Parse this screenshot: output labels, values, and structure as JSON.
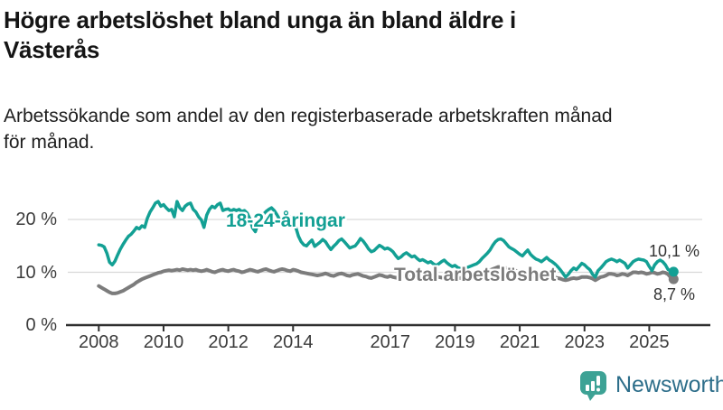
{
  "header": {
    "title_line1": "Högre arbetslöshet bland unga än bland äldre i",
    "title_line2": "Västerås",
    "subtitle_line1": "Arbetssökande som andel av den registerbaserade arbetskraften månad",
    "subtitle_line2": "för månad."
  },
  "chart_data": {
    "type": "line",
    "x_unit": "month",
    "x_start": "2008-01",
    "x_end": "2025-10",
    "x_ticks": [
      2008,
      2010,
      2012,
      2014,
      2017,
      2019,
      2021,
      2023,
      2025
    ],
    "x_tick_labels": [
      "2008",
      "2010",
      "2012",
      "2014",
      "2017",
      "2019",
      "2021",
      "2023",
      "2025"
    ],
    "y_ticks": [
      0,
      10,
      20
    ],
    "y_tick_labels": [
      "0 %",
      "10 %",
      "20 %"
    ],
    "ylim": [
      0,
      25
    ],
    "grid": "horizontal",
    "gridline_color": "#d9d9d9",
    "axis_color": "#2f2f2f",
    "series": [
      {
        "name": "Total arbetslöshet",
        "color": "#7c7c7c",
        "end_value_label": "8,7 %",
        "values": [
          7.4,
          7.1,
          6.8,
          6.5,
          6.2,
          6.0,
          6.0,
          6.1,
          6.3,
          6.5,
          6.8,
          7.1,
          7.4,
          7.7,
          8.1,
          8.4,
          8.7,
          8.9,
          9.1,
          9.3,
          9.5,
          9.7,
          9.9,
          10.0,
          10.2,
          10.3,
          10.4,
          10.3,
          10.4,
          10.5,
          10.4,
          10.6,
          10.5,
          10.4,
          10.5,
          10.4,
          10.5,
          10.3,
          10.2,
          10.3,
          10.5,
          10.3,
          10.1,
          10.0,
          10.2,
          10.4,
          10.5,
          10.3,
          10.2,
          10.4,
          10.5,
          10.3,
          10.2,
          10.0,
          10.1,
          10.3,
          10.5,
          10.4,
          10.2,
          10.1,
          10.3,
          10.5,
          10.6,
          10.4,
          10.2,
          10.1,
          10.3,
          10.5,
          10.6,
          10.5,
          10.3,
          10.2,
          10.5,
          10.4,
          10.2,
          10.0,
          9.9,
          9.8,
          9.7,
          9.6,
          9.5,
          9.4,
          9.5,
          9.6,
          9.8,
          9.6,
          9.4,
          9.3,
          9.5,
          9.7,
          9.8,
          9.6,
          9.4,
          9.3,
          9.5,
          9.6,
          9.7,
          9.5,
          9.3,
          9.2,
          9.0,
          8.9,
          9.1,
          9.3,
          9.5,
          9.4,
          9.2,
          9.1,
          9.3,
          9.1,
          9.0,
          8.9,
          9.1,
          9.3,
          9.4,
          9.2,
          9.1,
          9.0,
          8.9,
          9.0,
          9.1,
          9.0,
          8.9,
          8.8,
          8.9,
          9.0,
          9.1,
          9.0,
          8.9,
          8.8,
          8.9,
          9.0,
          9.1,
          9.0,
          8.9,
          9.0,
          9.1,
          9.2,
          9.3,
          9.4,
          9.5,
          9.6,
          9.8,
          10.0,
          10.2,
          10.4,
          10.6,
          10.8,
          11.0,
          11.0,
          10.9,
          10.8,
          10.7,
          10.5,
          10.4,
          10.2,
          10.0,
          9.8,
          9.7,
          9.5,
          9.4,
          9.2,
          9.1,
          9.0,
          8.9,
          9.0,
          9.1,
          9.2,
          9.1,
          9.0,
          8.9,
          8.8,
          8.6,
          8.5,
          8.6,
          8.8,
          8.9,
          8.8,
          8.9,
          9.1,
          9.1,
          9.1,
          9.0,
          8.8,
          8.5,
          8.8,
          9.1,
          9.2,
          9.4,
          9.7,
          9.7,
          9.6,
          9.4,
          9.5,
          9.7,
          9.6,
          9.4,
          9.7,
          10.0,
          10.0,
          9.9,
          10.0,
          9.9,
          9.7,
          9.8,
          10.0,
          9.9,
          9.7,
          9.8,
          10.0,
          9.9,
          9.6,
          9.0,
          8.7
        ]
      },
      {
        "name": "18-24-åringar",
        "color": "#13a094",
        "end_value_label": "10,1 %",
        "values": [
          15.2,
          15.1,
          14.8,
          13.6,
          11.9,
          11.4,
          12.1,
          13.3,
          14.4,
          15.3,
          16.1,
          16.8,
          17.2,
          17.8,
          18.5,
          18.2,
          18.8,
          18.5,
          20.2,
          21.4,
          22.2,
          23.1,
          23.4,
          22.5,
          22.8,
          22.2,
          21.7,
          21.9,
          20.5,
          23.4,
          22.2,
          21.7,
          22.5,
          22.9,
          23.1,
          21.9,
          21.4,
          20.5,
          19.9,
          18.5,
          20.8,
          21.9,
          22.5,
          22.2,
          22.8,
          23.1,
          21.7,
          21.9,
          22.0,
          21.6,
          21.9,
          21.7,
          21.9,
          21.5,
          21.7,
          21.2,
          20.1,
          18.4,
          17.7,
          19.2,
          20.3,
          21.0,
          21.5,
          21.9,
          22.2,
          21.7,
          20.9,
          20.0,
          19.5,
          19.3,
          19.9,
          20.5,
          19.6,
          18.5,
          16.8,
          15.8,
          15.2,
          15.0,
          15.6,
          16.1,
          14.9,
          15.3,
          15.7,
          16.2,
          15.8,
          15.0,
          14.3,
          14.9,
          15.4,
          16.0,
          16.3,
          15.8,
          15.2,
          14.6,
          14.8,
          15.0,
          15.6,
          16.4,
          15.9,
          15.2,
          14.4,
          13.9,
          14.1,
          14.6,
          15.1,
          14.8,
          14.4,
          14.6,
          14.3,
          13.9,
          13.2,
          12.6,
          12.9,
          13.4,
          13.7,
          13.3,
          12.9,
          13.1,
          12.6,
          12.2,
          12.4,
          12.1,
          11.8,
          12.0,
          11.6,
          11.3,
          11.6,
          12.0,
          12.3,
          11.8,
          11.4,
          11.1,
          11.3,
          10.9,
          10.7,
          10.5,
          10.8,
          11.0,
          11.2,
          11.4,
          11.6,
          12.0,
          12.6,
          13.1,
          13.6,
          14.2,
          15.1,
          15.8,
          16.2,
          16.3,
          16.0,
          15.4,
          14.8,
          14.5,
          14.2,
          13.8,
          13.4,
          13.1,
          13.7,
          14.2,
          13.4,
          12.9,
          12.5,
          12.3,
          12.0,
          12.4,
          12.8,
          12.3,
          12.0,
          11.6,
          11.1,
          10.5,
          9.8,
          9.1,
          9.6,
          10.3,
          10.8,
          10.5,
          11.1,
          11.7,
          11.4,
          10.9,
          10.5,
          9.6,
          9.1,
          10.3,
          10.8,
          11.4,
          12.0,
          12.3,
          12.5,
          12.3,
          12.0,
          12.3,
          12.0,
          11.7,
          10.8,
          11.4,
          12.0,
          12.3,
          12.5,
          12.4,
          12.3,
          12.0,
          11.1,
          10.3,
          11.4,
          12.0,
          12.3,
          12.0,
          11.4,
          10.5,
          10.3,
          10.1
        ]
      }
    ]
  },
  "branding": {
    "name": "Newsworthy",
    "logo_icon": "chart-speech-bubble-icon",
    "logo_color": "#3da295",
    "text_color": "#2d6e8a"
  }
}
